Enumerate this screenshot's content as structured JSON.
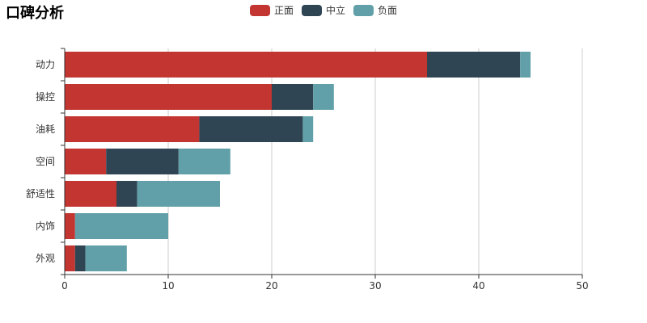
{
  "chart_data": {
    "type": "bar",
    "orientation": "horizontal",
    "stacked": true,
    "title": "口碑分析",
    "categories": [
      "动力",
      "操控",
      "油耗",
      "空间",
      "舒适性",
      "内饰",
      "外观"
    ],
    "series": [
      {
        "name": "正面",
        "color": "#c23531",
        "values": [
          35,
          20,
          13,
          4,
          5,
          1,
          1
        ]
      },
      {
        "name": "中立",
        "color": "#2f4554",
        "values": [
          9,
          4,
          10,
          7,
          2,
          0,
          1
        ]
      },
      {
        "name": "负面",
        "color": "#61a0a8",
        "values": [
          1,
          2,
          1,
          5,
          8,
          9,
          4
        ]
      }
    ],
    "xlim": [
      0,
      50
    ],
    "xticks": [
      "0",
      "10",
      "20",
      "30",
      "40",
      "50"
    ],
    "grid": true,
    "legend_position": "top-center"
  }
}
